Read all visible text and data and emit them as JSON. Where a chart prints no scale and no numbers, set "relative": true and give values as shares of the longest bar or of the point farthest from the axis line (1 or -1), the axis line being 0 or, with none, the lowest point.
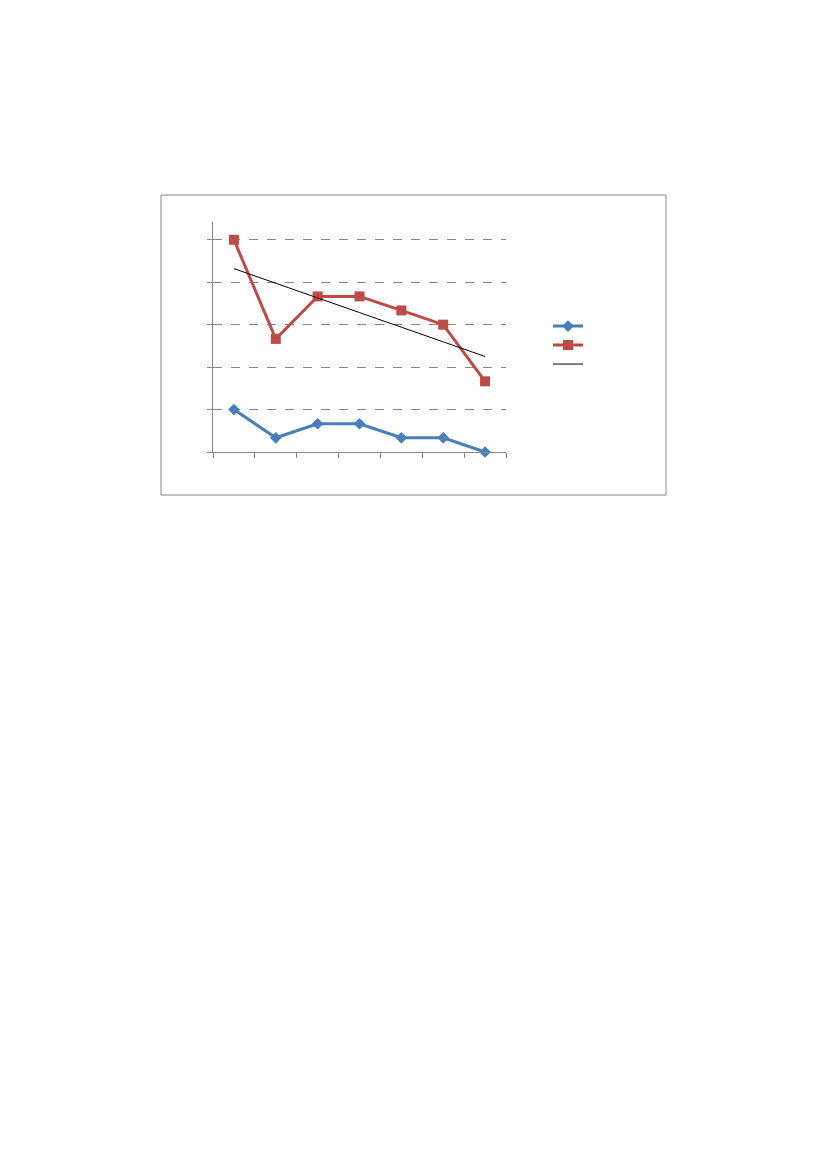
{
  "chart_data": {
    "type": "line",
    "relative": true,
    "categories": [
      null,
      null,
      null,
      null,
      null,
      null,
      null
    ],
    "series": [
      {
        "color": "#4a7ebb",
        "marker": "diamond",
        "values": [
          0.2,
          0.067,
          0.133,
          0.133,
          0.067,
          0.067,
          0
        ]
      },
      {
        "color": "#be4b48",
        "marker": "square",
        "values": [
          1,
          0.533,
          0.733,
          0.733,
          0.667,
          0.6,
          0.333
        ]
      },
      {
        "color": "#000000",
        "marker": "none",
        "values": [
          0.864,
          0.795,
          0.726,
          0.657,
          0.588,
          0.519,
          0.45
        ]
      }
    ],
    "grid": "y"
  }
}
